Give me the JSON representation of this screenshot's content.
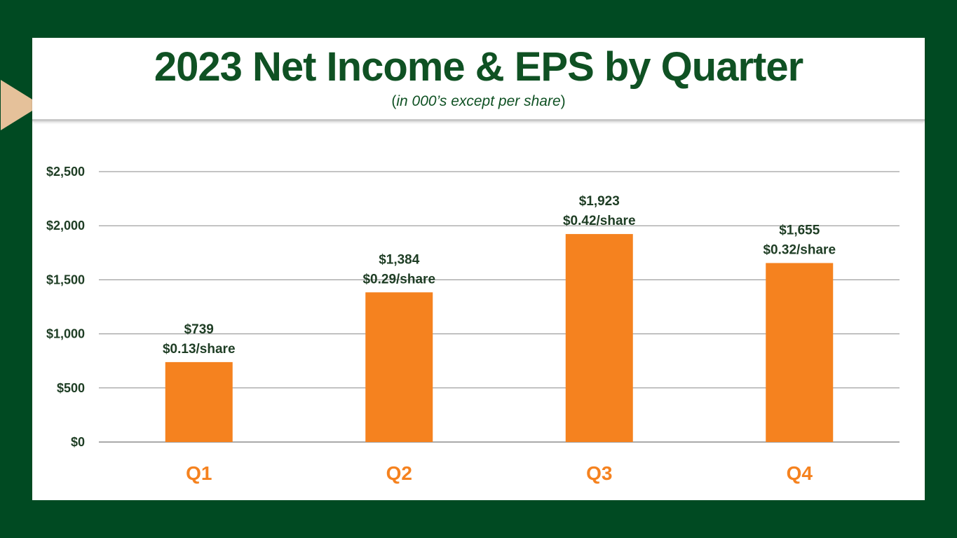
{
  "header": {
    "title": "2023 Net Income & EPS by Quarter",
    "subtitle_open": "(",
    "subtitle_italic": "in 000’s except per share",
    "subtitle_close": ")"
  },
  "colors": {
    "background": "#004a22",
    "title": "#0f5123",
    "bar": "#f5821f",
    "accent_arrow": "#e5c19a"
  },
  "chart_data": {
    "type": "bar",
    "title": "2023 Net Income & EPS by Quarter",
    "subtitle": "(in 000’s except per share)",
    "categories": [
      "Q1",
      "Q2",
      "Q3",
      "Q4"
    ],
    "series": [
      {
        "values": [
          739,
          1384,
          1923,
          1655
        ],
        "value_labels": [
          "$739",
          "$1,384",
          "$1,923",
          "$1,655"
        ],
        "eps_labels": [
          "$0.13/share",
          "$0.29/share",
          "$0.42/share",
          "$0.32/share"
        ]
      }
    ],
    "ylim": [
      0,
      2500
    ],
    "yticks": [
      0,
      500,
      1000,
      1500,
      2000,
      2500
    ],
    "ytick_labels": [
      "$0",
      "$500",
      "$1,000",
      "$1,500",
      "$2,000",
      "$2,500"
    ],
    "grid": true,
    "legend": "none"
  }
}
